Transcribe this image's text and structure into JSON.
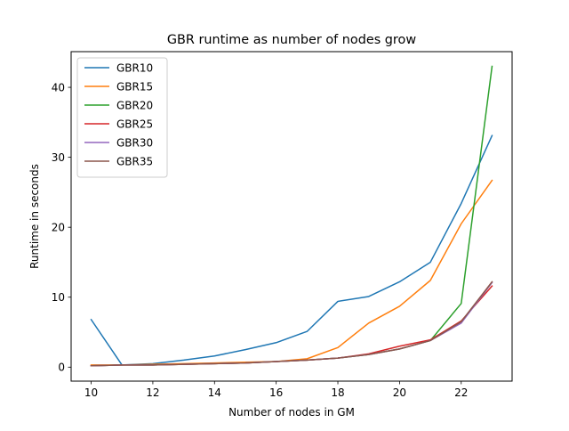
{
  "chart_data": {
    "type": "line",
    "title": "GBR runtime as number of nodes grow",
    "xlabel": "Number of nodes in GM",
    "ylabel": "Runtime in seconds",
    "xlim": [
      9.35,
      23.65
    ],
    "ylim": [
      -2.0,
      45.1
    ],
    "xticks": [
      10,
      12,
      14,
      16,
      18,
      20,
      22
    ],
    "yticks": [
      0,
      10,
      20,
      30,
      40
    ],
    "grid": false,
    "legend_position": "upper-left",
    "x": [
      10,
      11,
      12,
      13,
      14,
      15,
      16,
      17,
      18,
      19,
      20,
      21,
      22,
      23
    ],
    "series": [
      {
        "name": "GBR10",
        "color": "#1f77b4",
        "values": [
          6.8,
          0.3,
          0.5,
          1.0,
          1.6,
          2.5,
          3.5,
          5.1,
          9.4,
          10.1,
          12.2,
          15.0,
          23.4,
          33.1
        ]
      },
      {
        "name": "GBR15",
        "color": "#ff7f0e",
        "values": [
          0.3,
          0.3,
          0.4,
          0.5,
          0.6,
          0.7,
          0.8,
          1.2,
          2.8,
          6.3,
          8.7,
          12.4,
          20.5,
          26.7
        ]
      },
      {
        "name": "GBR20",
        "color": "#2ca02c",
        "values": [
          0.2,
          0.3,
          0.3,
          0.4,
          0.5,
          0.6,
          0.8,
          1.0,
          1.3,
          1.8,
          2.6,
          3.8,
          9.1,
          43.0
        ]
      },
      {
        "name": "GBR25",
        "color": "#d62728",
        "values": [
          0.2,
          0.3,
          0.3,
          0.4,
          0.5,
          0.6,
          0.8,
          1.0,
          1.3,
          1.9,
          3.0,
          3.9,
          6.6,
          11.6
        ]
      },
      {
        "name": "GBR30",
        "color": "#9467bd",
        "values": [
          0.2,
          0.3,
          0.3,
          0.4,
          0.5,
          0.6,
          0.8,
          1.0,
          1.3,
          1.8,
          2.6,
          3.8,
          6.3,
          12.1
        ]
      },
      {
        "name": "GBR35",
        "color": "#8c564b",
        "values": [
          0.2,
          0.3,
          0.3,
          0.4,
          0.5,
          0.6,
          0.8,
          1.0,
          1.3,
          1.8,
          2.6,
          3.8,
          6.5,
          12.2
        ]
      }
    ]
  }
}
